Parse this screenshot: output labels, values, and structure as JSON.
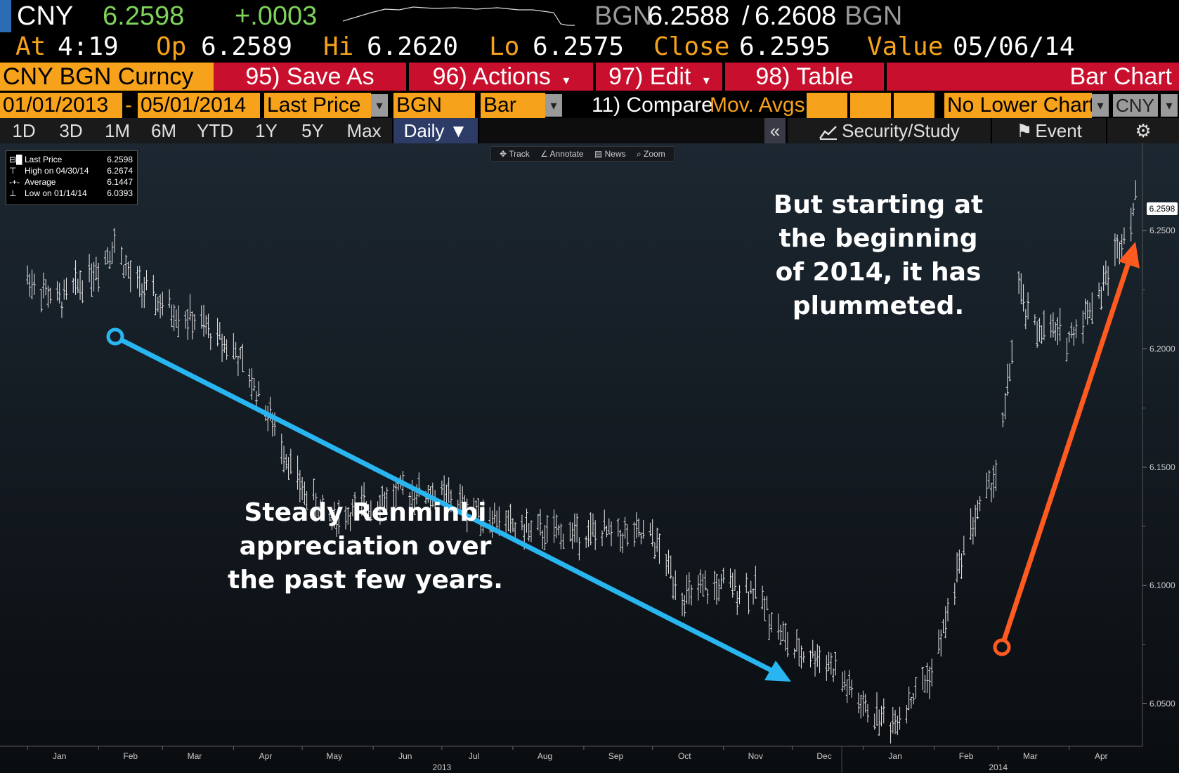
{
  "ticker": {
    "symbol": "CNY",
    "last": "6.2598",
    "change": "+.0003",
    "source_left": "BGN",
    "bid": "6.2588",
    "ask": "6.2608",
    "source_right": "BGN",
    "at_label": "At",
    "at_time": "4:19",
    "op_label": "Op",
    "op": "6.2589",
    "hi_label": "Hi",
    "hi": "6.2620",
    "lo_label": "Lo",
    "lo": "6.2575",
    "close_label": "Close",
    "close": "6.2595",
    "value_label": "Value",
    "value_date": "05/06/14"
  },
  "toolbar": {
    "security": "CNY BGN Curncy",
    "save_as": "95) Save As",
    "actions": "96) Actions",
    "edit": "97) Edit",
    "table": "98) Table",
    "chart_label": "Bar Chart"
  },
  "controls": {
    "start_date": "01/01/2013",
    "dash": "-",
    "end_date": "05/01/2014",
    "field": "Last Price",
    "source": "BGN",
    "style": "Bar",
    "compare": "11) Compare",
    "mov_avgs": "Mov. Avgs",
    "lower_chart": "No Lower Chart",
    "currency": "CNY"
  },
  "tabs": {
    "ranges": [
      "1D",
      "3D",
      "1M",
      "6M",
      "YTD",
      "1Y",
      "5Y",
      "Max"
    ],
    "period": "Daily ▼",
    "collapse": "«",
    "security_study": "Security/Study",
    "event": "Event"
  },
  "mini_toolbar": {
    "track": "Track",
    "annotate": "Annotate",
    "news": "News",
    "zoom": "Zoom"
  },
  "legend": {
    "last_label": "Last Price",
    "last_value": "6.2598",
    "high_label": "High on 04/30/14",
    "high_value": "6.2674",
    "avg_label": "Average",
    "avg_value": "6.1447",
    "low_label": "Low on 01/14/14",
    "low_value": "6.0393"
  },
  "price_tag": "6.2598",
  "annotations": {
    "left": [
      "Steady Renminbi",
      "appreciation over",
      "the past few years."
    ],
    "right": [
      "But starting at",
      "the beginning",
      "of 2014, it has",
      "plummeted."
    ]
  },
  "colors": {
    "accent_orange": "#f7a21b",
    "button_red": "#c8102e",
    "price_green": "#7fd35b",
    "arrow_blue": "#29b6f0",
    "arrow_orange": "#ff5a1f"
  },
  "chart_data": {
    "type": "bar",
    "title": "",
    "ylim": [
      6.035,
      6.275
    ],
    "yticks": [
      6.05,
      6.1,
      6.15,
      6.2,
      6.25
    ],
    "ytick_labels": [
      "6.0500",
      "6.1000",
      "6.1500",
      "6.2000",
      "6.2500"
    ],
    "months": [
      "Jan",
      "Feb",
      "Mar",
      "Apr",
      "May",
      "Jun",
      "Jul",
      "Aug",
      "Sep",
      "Oct",
      "Nov",
      "Dec",
      "Jan",
      "Feb",
      "Mar",
      "Apr"
    ],
    "years": [
      "2013",
      "2014"
    ],
    "series": [
      {
        "x": [
          "2013-01-01",
          "2013-01-15",
          "2013-02-01",
          "2013-02-08",
          "2013-02-15",
          "2013-03-01",
          "2013-03-15",
          "2013-04-01",
          "2013-04-15",
          "2013-05-01",
          "2013-05-15",
          "2013-06-01",
          "2013-06-15",
          "2013-07-01",
          "2013-07-15",
          "2013-08-01",
          "2013-08-15",
          "2013-09-01",
          "2013-09-15",
          "2013-10-01",
          "2013-10-15",
          "2013-11-01",
          "2013-11-15",
          "2013-12-01",
          "2013-12-15",
          "2014-01-01",
          "2014-01-14",
          "2014-02-01",
          "2014-02-15",
          "2014-03-01",
          "2014-03-10",
          "2014-03-15",
          "2014-04-01",
          "2014-04-15",
          "2014-04-30"
        ],
        "y": [
          6.23,
          6.22,
          6.235,
          6.245,
          6.23,
          6.218,
          6.212,
          6.2,
          6.175,
          6.14,
          6.128,
          6.135,
          6.14,
          6.138,
          6.132,
          6.125,
          6.122,
          6.122,
          6.122,
          6.12,
          6.095,
          6.1,
          6.098,
          6.072,
          6.07,
          6.048,
          6.042,
          6.065,
          6.12,
          6.15,
          6.225,
          6.21,
          6.205,
          6.225,
          6.262
        ]
      }
    ]
  }
}
